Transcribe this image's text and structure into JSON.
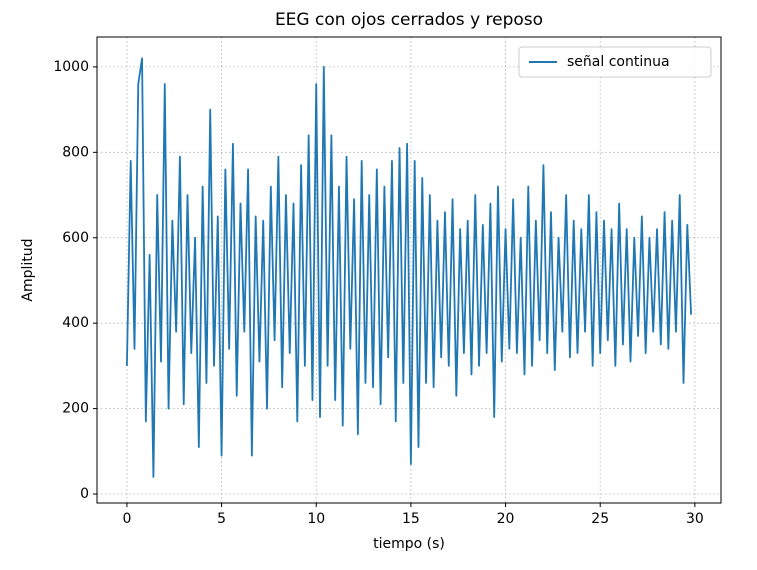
{
  "chart_data": {
    "type": "line",
    "title": "EEG con ojos cerrados y reposo",
    "x_label": "tiempo (s)",
    "y_label": "Amplitud",
    "x": [
      0,
      0.2,
      0.4,
      0.6,
      0.8,
      1,
      1.2,
      1.4,
      1.6,
      1.8,
      2,
      2.2,
      2.4,
      2.6,
      2.8,
      3,
      3.2,
      3.4,
      3.6,
      3.8,
      4,
      4.2,
      4.4,
      4.6,
      4.8,
      5,
      5.2,
      5.4,
      5.6,
      5.8,
      6,
      6.2,
      6.4,
      6.6,
      6.8,
      7,
      7.2,
      7.4,
      7.6,
      7.8,
      8,
      8.2,
      8.4,
      8.6,
      8.8,
      9,
      9.2,
      9.4,
      9.6,
      9.8,
      10,
      10.2,
      10.4,
      10.6,
      10.8,
      11,
      11.2,
      11.4,
      11.6,
      11.8,
      12,
      12.2,
      12.4,
      12.6,
      12.8,
      13,
      13.2,
      13.4,
      13.6,
      13.8,
      14,
      14.2,
      14.4,
      14.6,
      14.8,
      15,
      15.2,
      15.4,
      15.6,
      15.8,
      16,
      16.2,
      16.4,
      16.6,
      16.8,
      17,
      17.2,
      17.4,
      17.6,
      17.8,
      18,
      18.2,
      18.4,
      18.6,
      18.8,
      19,
      19.2,
      19.4,
      19.6,
      19.8,
      20,
      20.2,
      20.4,
      20.6,
      20.8,
      21,
      21.2,
      21.4,
      21.6,
      21.8,
      22,
      22.2,
      22.4,
      22.6,
      22.8,
      23,
      23.2,
      23.4,
      23.6,
      23.8,
      24,
      24.2,
      24.4,
      24.6,
      24.8,
      25,
      25.2,
      25.4,
      25.6,
      25.8,
      26,
      26.2,
      26.4,
      26.6,
      26.8,
      27,
      27.2,
      27.4,
      27.6,
      27.8,
      28,
      28.2,
      28.4,
      28.6,
      28.8,
      29,
      29.2,
      29.4,
      29.6,
      29.8
    ],
    "series": [
      {
        "name": "señal continua",
        "color": "#1f77b4",
        "values": [
          300,
          780,
          340,
          960,
          1020,
          170,
          560,
          40,
          700,
          310,
          960,
          200,
          640,
          380,
          790,
          210,
          700,
          330,
          600,
          110,
          720,
          260,
          900,
          300,
          650,
          90,
          760,
          340,
          820,
          230,
          680,
          380,
          760,
          90,
          650,
          310,
          640,
          200,
          720,
          360,
          790,
          250,
          700,
          330,
          680,
          170,
          770,
          300,
          840,
          220,
          960,
          180,
          1000,
          300,
          840,
          220,
          720,
          160,
          790,
          340,
          690,
          140,
          780,
          260,
          700,
          250,
          760,
          210,
          720,
          320,
          780,
          170,
          810,
          260,
          820,
          70,
          780,
          110,
          740,
          260,
          700,
          250,
          640,
          320,
          660,
          300,
          690,
          230,
          620,
          330,
          640,
          280,
          700,
          300,
          630,
          330,
          680,
          180,
          720,
          310,
          620,
          340,
          690,
          330,
          600,
          280,
          720,
          300,
          640,
          360,
          770,
          330,
          660,
          290,
          600,
          380,
          700,
          320,
          640,
          330,
          620,
          380,
          700,
          300,
          660,
          330,
          640,
          360,
          620,
          300,
          680,
          350,
          620,
          310,
          600,
          370,
          650,
          330,
          600,
          380,
          620,
          350,
          660,
          340,
          640,
          380,
          700,
          260,
          630,
          420
        ]
      }
    ],
    "xlim": [
      -1.58,
      31.38
    ],
    "ylim": [
      -21,
      1070
    ],
    "xticks": [
      0,
      5,
      10,
      15,
      20,
      25,
      30
    ],
    "yticks": [
      0,
      200,
      400,
      600,
      800,
      1000
    ],
    "grid": true,
    "legend": "upper right"
  }
}
